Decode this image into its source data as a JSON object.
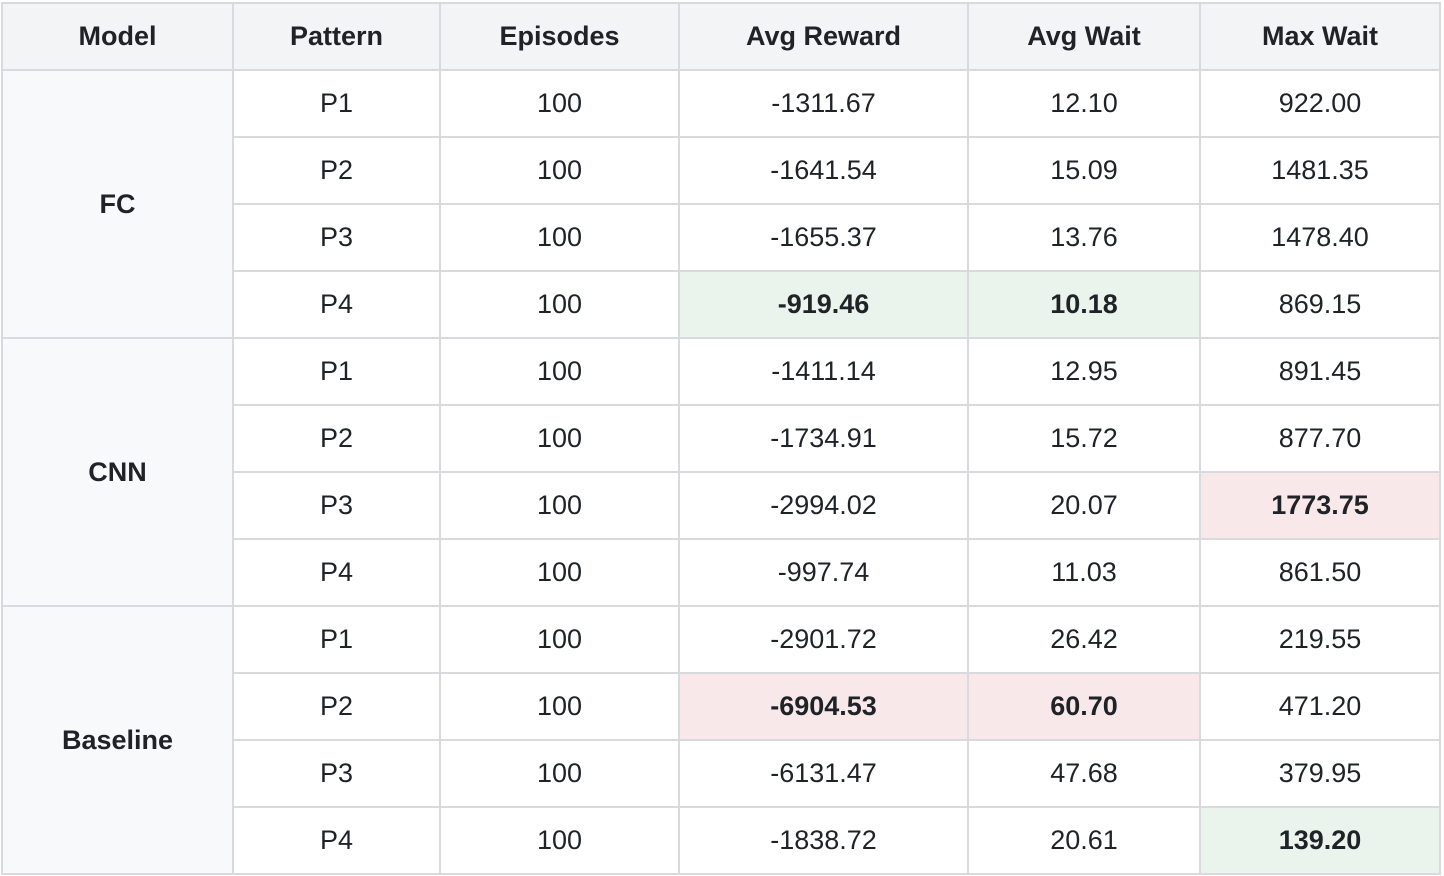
{
  "colors": {
    "header_bg": "#f3f4f6",
    "model_bg": "#f8f9fa",
    "border": "#d8dadd",
    "highlight_best": "#eaf3ec",
    "highlight_worst": "#f8e8ea"
  },
  "table": {
    "headers": [
      "Model",
      "Pattern",
      "Episodes",
      "Avg Reward",
      "Avg Wait",
      "Max Wait"
    ],
    "groups": [
      {
        "model": "FC",
        "rows": [
          {
            "pattern": "P1",
            "episodes": "100",
            "avg_reward": "-1311.67",
            "avg_wait": "12.10",
            "max_wait": "922.00"
          },
          {
            "pattern": "P2",
            "episodes": "100",
            "avg_reward": "-1641.54",
            "avg_wait": "15.09",
            "max_wait": "1481.35"
          },
          {
            "pattern": "P3",
            "episodes": "100",
            "avg_reward": "-1655.37",
            "avg_wait": "13.76",
            "max_wait": "1478.40"
          },
          {
            "pattern": "P4",
            "episodes": "100",
            "avg_reward": "-919.46",
            "avg_wait": "10.18",
            "max_wait": "869.15",
            "highlight": {
              "avg_reward": "good",
              "avg_wait": "good"
            }
          }
        ]
      },
      {
        "model": "CNN",
        "rows": [
          {
            "pattern": "P1",
            "episodes": "100",
            "avg_reward": "-1411.14",
            "avg_wait": "12.95",
            "max_wait": "891.45"
          },
          {
            "pattern": "P2",
            "episodes": "100",
            "avg_reward": "-1734.91",
            "avg_wait": "15.72",
            "max_wait": "877.70"
          },
          {
            "pattern": "P3",
            "episodes": "100",
            "avg_reward": "-2994.02",
            "avg_wait": "20.07",
            "max_wait": "1773.75",
            "highlight": {
              "max_wait": "bad"
            }
          },
          {
            "pattern": "P4",
            "episodes": "100",
            "avg_reward": "-997.74",
            "avg_wait": "11.03",
            "max_wait": "861.50"
          }
        ]
      },
      {
        "model": "Baseline",
        "rows": [
          {
            "pattern": "P1",
            "episodes": "100",
            "avg_reward": "-2901.72",
            "avg_wait": "26.42",
            "max_wait": "219.55"
          },
          {
            "pattern": "P2",
            "episodes": "100",
            "avg_reward": "-6904.53",
            "avg_wait": "60.70",
            "max_wait": "471.20",
            "highlight": {
              "avg_reward": "bad",
              "avg_wait": "bad"
            }
          },
          {
            "pattern": "P3",
            "episodes": "100",
            "avg_reward": "-6131.47",
            "avg_wait": "47.68",
            "max_wait": "379.95"
          },
          {
            "pattern": "P4",
            "episodes": "100",
            "avg_reward": "-1838.72",
            "avg_wait": "20.61",
            "max_wait": "139.20",
            "highlight": {
              "max_wait": "good"
            }
          }
        ]
      }
    ]
  }
}
